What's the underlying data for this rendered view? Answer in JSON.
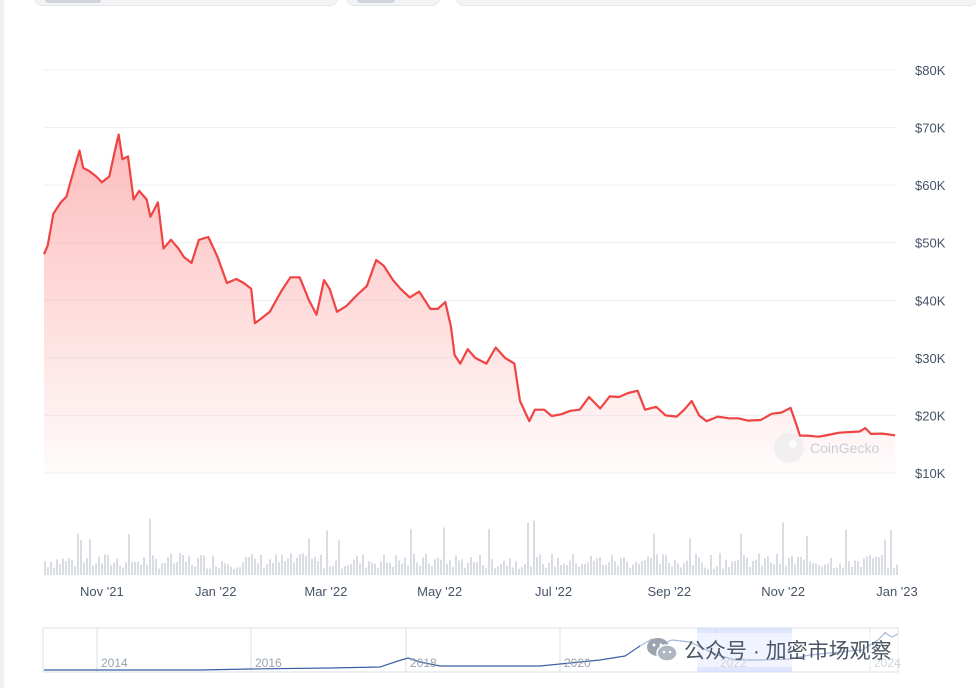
{
  "page": {
    "watermark_text": "公众号 · 加密市场观察",
    "icon": "wechat-icon"
  },
  "colors": {
    "price_line": "#ef4444",
    "area_fill_top": "#fca5a5",
    "grid": "#eceff3",
    "axis_text": "#475467",
    "volume_bar": "#d9dde3",
    "navigator_line": "#3b5fa5",
    "navigator_selection": "#c7d2fe",
    "navigator_border": "#dbe0e6"
  },
  "chart_data": {
    "type": "area",
    "title": "",
    "source_watermark": "CoinGecko",
    "x_range": [
      "2021-10-01",
      "2023-01-01"
    ],
    "y_range": [
      10000,
      80000
    ],
    "y_scale": "linear",
    "y_ticks": [
      "$10K",
      "$20K",
      "$30K",
      "$40K",
      "$50K",
      "$60K",
      "$70K",
      "$80K"
    ],
    "x_ticks": [
      {
        "date": "2021-11-01",
        "label": "Nov '21"
      },
      {
        "date": "2022-01-01",
        "label": "Jan '22"
      },
      {
        "date": "2022-03-01",
        "label": "Mar '22"
      },
      {
        "date": "2022-05-01",
        "label": "May '22"
      },
      {
        "date": "2022-07-01",
        "label": "Jul '22"
      },
      {
        "date": "2022-09-01",
        "label": "Sep '22"
      },
      {
        "date": "2022-11-01",
        "label": "Nov '22"
      },
      {
        "date": "2023-01-01",
        "label": "Jan '23"
      }
    ],
    "grid": true,
    "series": [
      {
        "points": [
          [
            "2021-10-01",
            48000
          ],
          [
            "2021-10-03",
            49500
          ],
          [
            "2021-10-06",
            55000
          ],
          [
            "2021-10-10",
            57000
          ],
          [
            "2021-10-13",
            58000
          ],
          [
            "2021-10-16",
            61500
          ],
          [
            "2021-10-20",
            66000
          ],
          [
            "2021-10-22",
            63000
          ],
          [
            "2021-10-25",
            62500
          ],
          [
            "2021-10-29",
            61500
          ],
          [
            "2021-11-01",
            60500
          ],
          [
            "2021-11-05",
            61500
          ],
          [
            "2021-11-08",
            66000
          ],
          [
            "2021-11-10",
            68800
          ],
          [
            "2021-11-12",
            64500
          ],
          [
            "2021-11-15",
            65000
          ],
          [
            "2021-11-18",
            57500
          ],
          [
            "2021-11-21",
            59000
          ],
          [
            "2021-11-25",
            57500
          ],
          [
            "2021-11-27",
            54500
          ],
          [
            "2021-12-01",
            57000
          ],
          [
            "2021-12-04",
            49000
          ],
          [
            "2021-12-08",
            50500
          ],
          [
            "2021-12-12",
            49000
          ],
          [
            "2021-12-15",
            47500
          ],
          [
            "2021-12-19",
            46500
          ],
          [
            "2021-12-23",
            50500
          ],
          [
            "2021-12-28",
            51000
          ],
          [
            "2022-01-02",
            47500
          ],
          [
            "2022-01-07",
            43000
          ],
          [
            "2022-01-12",
            43700
          ],
          [
            "2022-01-16",
            43000
          ],
          [
            "2022-01-20",
            42000
          ],
          [
            "2022-01-22",
            36000
          ],
          [
            "2022-01-26",
            37000
          ],
          [
            "2022-01-30",
            38000
          ],
          [
            "2022-02-05",
            41500
          ],
          [
            "2022-02-10",
            44000
          ],
          [
            "2022-02-15",
            44000
          ],
          [
            "2022-02-20",
            40000
          ],
          [
            "2022-02-24",
            37500
          ],
          [
            "2022-02-28",
            43500
          ],
          [
            "2022-03-03",
            42000
          ],
          [
            "2022-03-07",
            38000
          ],
          [
            "2022-03-12",
            39000
          ],
          [
            "2022-03-18",
            41000
          ],
          [
            "2022-03-23",
            42500
          ],
          [
            "2022-03-28",
            47000
          ],
          [
            "2022-04-01",
            46000
          ],
          [
            "2022-04-06",
            43500
          ],
          [
            "2022-04-10",
            42000
          ],
          [
            "2022-04-15",
            40500
          ],
          [
            "2022-04-20",
            41500
          ],
          [
            "2022-04-26",
            38500
          ],
          [
            "2022-04-30",
            38500
          ],
          [
            "2022-05-04",
            39700
          ],
          [
            "2022-05-07",
            35500
          ],
          [
            "2022-05-09",
            30500
          ],
          [
            "2022-05-12",
            29000
          ],
          [
            "2022-05-16",
            31500
          ],
          [
            "2022-05-20",
            30000
          ],
          [
            "2022-05-26",
            29000
          ],
          [
            "2022-05-31",
            31800
          ],
          [
            "2022-06-05",
            30000
          ],
          [
            "2022-06-10",
            29000
          ],
          [
            "2022-06-13",
            22500
          ],
          [
            "2022-06-18",
            19000
          ],
          [
            "2022-06-21",
            21000
          ],
          [
            "2022-06-26",
            21000
          ],
          [
            "2022-06-30",
            19900
          ],
          [
            "2022-07-05",
            20200
          ],
          [
            "2022-07-10",
            20800
          ],
          [
            "2022-07-15",
            21000
          ],
          [
            "2022-07-20",
            23200
          ],
          [
            "2022-07-26",
            21200
          ],
          [
            "2022-07-31",
            23300
          ],
          [
            "2022-08-05",
            23200
          ],
          [
            "2022-08-10",
            23900
          ],
          [
            "2022-08-15",
            24300
          ],
          [
            "2022-08-19",
            21000
          ],
          [
            "2022-08-25",
            21500
          ],
          [
            "2022-08-30",
            20000
          ],
          [
            "2022-09-05",
            19800
          ],
          [
            "2022-09-09",
            21000
          ],
          [
            "2022-09-13",
            22500
          ],
          [
            "2022-09-17",
            20000
          ],
          [
            "2022-09-21",
            19000
          ],
          [
            "2022-09-27",
            19800
          ],
          [
            "2022-10-03",
            19500
          ],
          [
            "2022-10-08",
            19500
          ],
          [
            "2022-10-13",
            19100
          ],
          [
            "2022-10-20",
            19200
          ],
          [
            "2022-10-26",
            20300
          ],
          [
            "2022-10-31",
            20500
          ],
          [
            "2022-11-05",
            21300
          ],
          [
            "2022-11-08",
            18500
          ],
          [
            "2022-11-10",
            16500
          ],
          [
            "2022-11-14",
            16500
          ],
          [
            "2022-11-20",
            16300
          ],
          [
            "2022-11-25",
            16600
          ],
          [
            "2022-12-01",
            17000
          ],
          [
            "2022-12-06",
            17100
          ],
          [
            "2022-12-12",
            17200
          ],
          [
            "2022-12-15",
            17800
          ],
          [
            "2022-12-18",
            16800
          ],
          [
            "2022-12-24",
            16850
          ],
          [
            "2022-12-31",
            16550
          ]
        ]
      }
    ],
    "navigator": {
      "x_ticks": [
        "2014",
        "2016",
        "2018",
        "2020",
        "2022",
        "2024"
      ],
      "selected_range": [
        "2021-10-01",
        "2023-01-01"
      ]
    }
  }
}
